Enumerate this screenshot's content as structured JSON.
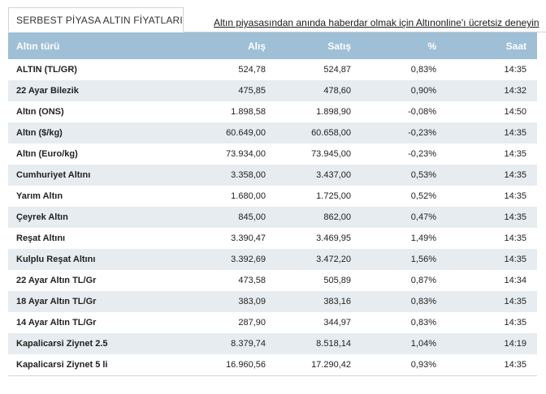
{
  "tab": {
    "label": "SERBEST PİYASA ALTIN FİYATLARI"
  },
  "promo_link": "Altın piyasasından anında haberdar olmak için Altınonline'ı ücretsiz deneyin",
  "table": {
    "headers": {
      "name": "Altın türü",
      "buy": "Alış",
      "sell": "Satış",
      "pct": "%",
      "time": "Saat"
    },
    "rows": [
      {
        "name": "ALTIN (TL/GR)",
        "buy": "524,78",
        "sell": "524,87",
        "pct": "0,83%",
        "time": "14:35"
      },
      {
        "name": "22 Ayar Bilezik",
        "buy": "475,85",
        "sell": "478,60",
        "pct": "0,90%",
        "time": "14:32"
      },
      {
        "name": "Altın (ONS)",
        "buy": "1.898,58",
        "sell": "1.898,90",
        "pct": "-0,08%",
        "time": "14:50"
      },
      {
        "name": "Altın ($/kg)",
        "buy": "60.649,00",
        "sell": "60.658,00",
        "pct": "-0,23%",
        "time": "14:35"
      },
      {
        "name": "Altın (Euro/kg)",
        "buy": "73.934,00",
        "sell": "73.945,00",
        "pct": "-0,23%",
        "time": "14:35"
      },
      {
        "name": "Cumhuriyet Altını",
        "buy": "3.358,00",
        "sell": "3.437,00",
        "pct": "0,53%",
        "time": "14:35"
      },
      {
        "name": "Yarım Altın",
        "buy": "1.680,00",
        "sell": "1.725,00",
        "pct": "0,52%",
        "time": "14:35"
      },
      {
        "name": "Çeyrek Altın",
        "buy": "845,00",
        "sell": "862,00",
        "pct": "0,47%",
        "time": "14:35"
      },
      {
        "name": "Reşat Altını",
        "buy": "3.390,47",
        "sell": "3.469,95",
        "pct": "1,49%",
        "time": "14:35"
      },
      {
        "name": "Kulplu Reşat Altını",
        "buy": "3.392,69",
        "sell": "3.472,20",
        "pct": "1,56%",
        "time": "14:35"
      },
      {
        "name": "22 Ayar Altın TL/Gr",
        "buy": "473,58",
        "sell": "505,89",
        "pct": "0,87%",
        "time": "14:34"
      },
      {
        "name": "18 Ayar Altın TL/Gr",
        "buy": "383,09",
        "sell": "383,16",
        "pct": "0,83%",
        "time": "14:35"
      },
      {
        "name": "14 Ayar Altın TL/Gr",
        "buy": "287,90",
        "sell": "344,97",
        "pct": "0,83%",
        "time": "14:35"
      },
      {
        "name": "Kapalicarsi Ziynet 2.5",
        "buy": "8.379,74",
        "sell": "8.518,14",
        "pct": "1,04%",
        "time": "14:19"
      },
      {
        "name": "Kapalicarsi Ziynet 5 li",
        "buy": "16.960,56",
        "sell": "17.290,42",
        "pct": "0,93%",
        "time": "14:35"
      }
    ]
  }
}
